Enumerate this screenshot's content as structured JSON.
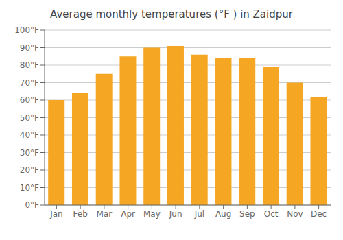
{
  "chart_data": {
    "type": "bar",
    "title": "Average monthly temperatures (°F ) in Zaidpur",
    "categories": [
      "Jan",
      "Feb",
      "Mar",
      "Apr",
      "May",
      "Jun",
      "Jul",
      "Aug",
      "Sep",
      "Oct",
      "Nov",
      "Dec"
    ],
    "values": [
      60,
      64,
      75,
      85,
      90,
      91,
      86,
      84,
      84,
      79,
      70,
      62
    ],
    "color": "#F5A623",
    "ylim": [
      0,
      100
    ],
    "yticks": [
      {
        "value": 0,
        "label": "0°F"
      },
      {
        "value": 10,
        "label": "10°F"
      },
      {
        "value": 20,
        "label": "20°F"
      },
      {
        "value": 30,
        "label": "30°F"
      },
      {
        "value": 40,
        "label": "40°F"
      },
      {
        "value": 50,
        "label": "50°F"
      },
      {
        "value": 60,
        "label": "60°F"
      },
      {
        "value": 70,
        "label": "70°F"
      },
      {
        "value": 80,
        "label": "80°F"
      },
      {
        "value": 90,
        "label": "90°F"
      },
      {
        "value": 100,
        "label": "100°F"
      }
    ],
    "grid": true
  }
}
